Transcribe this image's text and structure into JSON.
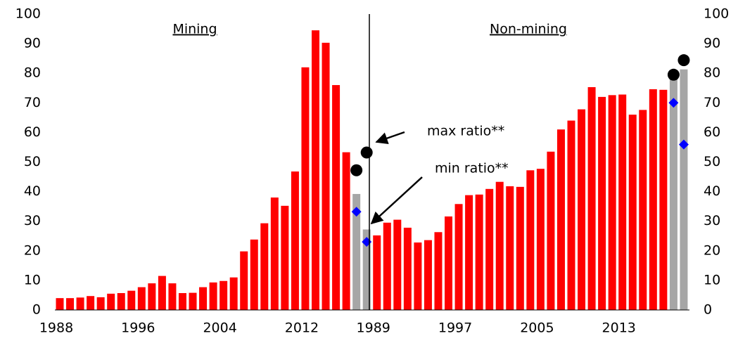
{
  "chart_data": [
    {
      "type": "bar",
      "title": "Mining",
      "categories": [
        "1988",
        null,
        null,
        null,
        null,
        null,
        null,
        null,
        "1996",
        null,
        null,
        null,
        null,
        null,
        null,
        null,
        "2004",
        null,
        null,
        null,
        null,
        null,
        null,
        null,
        "2012",
        null,
        null,
        null,
        null,
        null,
        null
      ],
      "series": [
        {
          "color": "#ff0000",
          "values": [
            4,
            4,
            4.2,
            4.7,
            4.3,
            5.5,
            5.7,
            6.5,
            7.7,
            9,
            11.5,
            9,
            5.7,
            5.8,
            7.7,
            9.3,
            9.8,
            11,
            19.8,
            23.8,
            29.3,
            38,
            35.2,
            46.8,
            82,
            94.5,
            90.3,
            76,
            53.3,
            null,
            null
          ]
        },
        {
          "color": "#a6a6a6",
          "values": [
            null,
            null,
            null,
            null,
            null,
            null,
            null,
            null,
            null,
            null,
            null,
            null,
            null,
            null,
            null,
            null,
            null,
            null,
            null,
            null,
            null,
            null,
            null,
            null,
            null,
            null,
            null,
            null,
            null,
            39.2,
            27.2
          ]
        },
        {
          "marker": "circle",
          "color": "#000000",
          "values": [
            null,
            null,
            null,
            null,
            null,
            null,
            null,
            null,
            null,
            null,
            null,
            null,
            null,
            null,
            null,
            null,
            null,
            null,
            null,
            null,
            null,
            null,
            null,
            null,
            null,
            null,
            null,
            null,
            null,
            47.2,
            53.2
          ]
        },
        {
          "marker": "diamond",
          "color": "#0000ff",
          "values": [
            null,
            null,
            null,
            null,
            null,
            null,
            null,
            null,
            null,
            null,
            null,
            null,
            null,
            null,
            null,
            null,
            null,
            null,
            null,
            null,
            null,
            null,
            null,
            null,
            null,
            null,
            null,
            null,
            null,
            33.2,
            23
          ]
        }
      ],
      "annotations": [
        {
          "text": "max ratio**",
          "color": "#000000"
        },
        {
          "text": "min ratio**",
          "color": "#0000ff"
        }
      ],
      "ylim": [
        0,
        100
      ],
      "yticks": [
        0,
        10,
        20,
        30,
        40,
        50,
        60,
        70,
        80,
        90,
        100
      ],
      "y_axis_side": "left"
    },
    {
      "type": "bar",
      "title": "Non-mining",
      "categories": [
        "1989",
        null,
        null,
        null,
        null,
        null,
        null,
        null,
        "1997",
        null,
        null,
        null,
        null,
        null,
        null,
        null,
        "2005",
        null,
        null,
        null,
        null,
        null,
        null,
        null,
        "2013",
        null,
        null,
        null,
        null,
        null,
        null
      ],
      "series": [
        {
          "color": "#ff0000",
          "values": [
            25.2,
            29.5,
            30.5,
            27.8,
            22.8,
            23.6,
            26.3,
            31.6,
            35.8,
            38.8,
            39,
            40.9,
            43.3,
            41.8,
            41.6,
            47.2,
            47.7,
            53.5,
            61,
            64,
            67.8,
            75.3,
            72,
            72.6,
            72.8,
            66,
            67.6,
            74.6,
            74.4,
            null,
            null
          ]
        },
        {
          "color": "#a6a6a6",
          "values": [
            null,
            null,
            null,
            null,
            null,
            null,
            null,
            null,
            null,
            null,
            null,
            null,
            null,
            null,
            null,
            null,
            null,
            null,
            null,
            null,
            null,
            null,
            null,
            null,
            null,
            null,
            null,
            null,
            null,
            79.8,
            81.3
          ]
        },
        {
          "marker": "circle",
          "color": "#000000",
          "values": [
            null,
            null,
            null,
            null,
            null,
            null,
            null,
            null,
            null,
            null,
            null,
            null,
            null,
            null,
            null,
            null,
            null,
            null,
            null,
            null,
            null,
            null,
            null,
            null,
            null,
            null,
            null,
            null,
            null,
            79.5,
            84.4
          ]
        },
        {
          "marker": "diamond",
          "color": "#0000ff",
          "values": [
            null,
            null,
            null,
            null,
            null,
            null,
            null,
            null,
            null,
            null,
            null,
            null,
            null,
            null,
            null,
            null,
            null,
            null,
            null,
            null,
            null,
            null,
            null,
            null,
            null,
            null,
            null,
            null,
            null,
            70,
            55.9
          ]
        }
      ],
      "ylim": [
        0,
        100
      ],
      "yticks": [
        0,
        10,
        20,
        30,
        40,
        50,
        60,
        70,
        80,
        90,
        100
      ],
      "y_axis_side": "right"
    }
  ]
}
